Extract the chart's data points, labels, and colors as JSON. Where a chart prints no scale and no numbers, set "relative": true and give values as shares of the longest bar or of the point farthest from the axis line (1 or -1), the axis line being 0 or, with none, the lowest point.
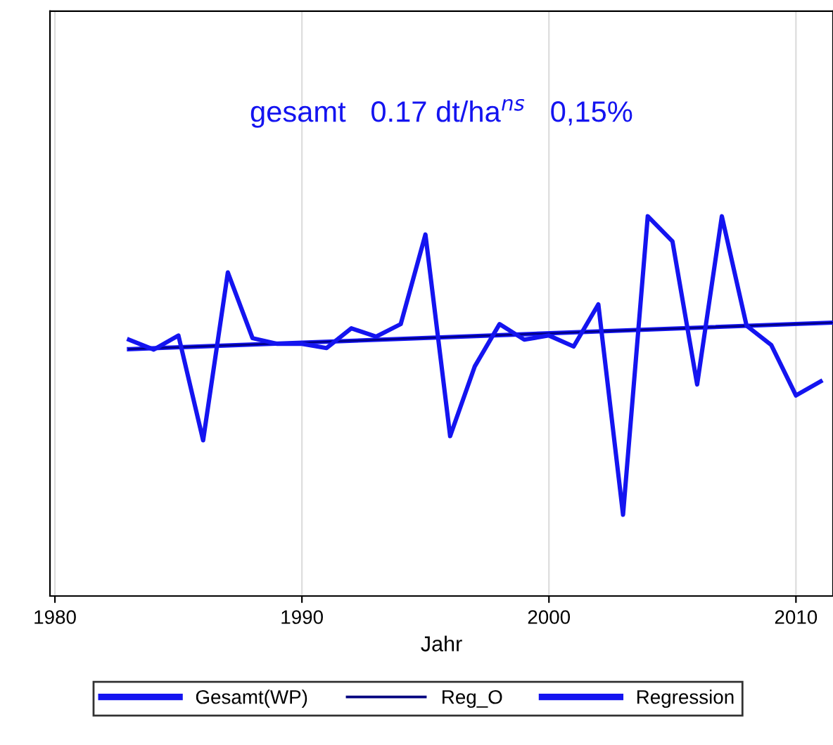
{
  "chart_data": {
    "type": "line",
    "relative": true,
    "xlabel": "Jahr",
    "annotations": [
      "gesamt   0.17 dt/ha$^{ns}$   0,15%"
    ],
    "xlim": [
      1979.8,
      2011.5
    ],
    "xticks": [
      1980,
      1990,
      2000,
      2010
    ],
    "tick_labels": "x",
    "grid": true,
    "legend": "bottom",
    "marker": "none",
    "line_style": "solid",
    "series": [
      {
        "name": "Gesamt(WP)",
        "color": "#1414f0",
        "x": [
          1983,
          1984,
          1985,
          1986,
          1987,
          1988,
          1989,
          1990,
          1991,
          1992,
          1993,
          1994,
          1995,
          1996,
          1997,
          1998,
          1999,
          2000,
          2001,
          2002,
          2003,
          2004,
          2005,
          2006,
          2007,
          2008,
          2009,
          2010,
          2011
        ],
        "values": [
          0.675,
          0.649,
          0.686,
          0.41,
          0.852,
          0.679,
          0.664,
          0.664,
          0.653,
          0.705,
          0.683,
          0.716,
          0.952,
          0.421,
          0.605,
          0.716,
          0.675,
          0.686,
          0.657,
          0.768,
          0.214,
          1,
          0.934,
          0.557,
          1,
          0.712,
          0.661,
          0.528,
          0.565
        ]
      },
      {
        "name": "Reg_O",
        "color": "#000080",
        "x": [
          1983,
          2011.5
        ],
        "values": [
          0.65,
          0.72
        ]
      },
      {
        "name": "Regression",
        "color": "#1414f0",
        "x": [
          1983,
          2011.5
        ],
        "values": [
          0.65,
          0.72
        ]
      }
    ]
  }
}
